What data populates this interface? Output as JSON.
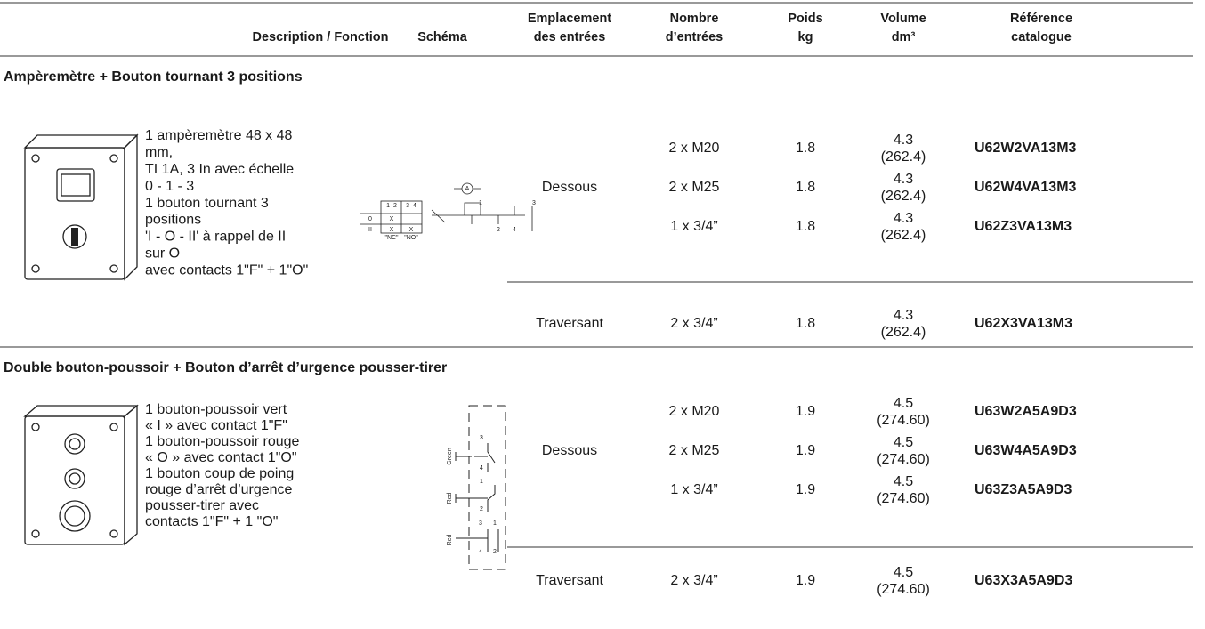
{
  "header": {
    "columns": [
      [
        "Description / Fonction"
      ],
      [
        "Schéma"
      ],
      [
        "Emplacement",
        "des entrées"
      ],
      [
        "Nombre",
        "d’entrées"
      ],
      [
        "Poids",
        "kg"
      ],
      [
        "Volume",
        "dm³"
      ],
      [
        "Référence",
        "catalogue"
      ]
    ]
  },
  "sections": [
    {
      "title": "Ampèremètre + Bouton tournant 3 positions",
      "description": [
        "1 ampèremètre 48 x 48",
        "mm,",
        "TI 1A, 3 In avec échelle",
        "0 - 1 - 3",
        "1 bouton tournant 3",
        "positions",
        "'I - O - II' à rappel de II",
        "sur O",
        "avec contacts 1\"F\" + 1\"O\""
      ],
      "schema_labels": [
        "A",
        "1–2",
        "3–4",
        "0",
        "II",
        "X",
        "X",
        "X",
        "\"NC\"",
        "\"NO\"",
        "1",
        "3",
        "2",
        "4"
      ],
      "locations": [
        {
          "label": "Dessous",
          "rows": [
            {
              "entries": "2 x M20",
              "weight": "1.8",
              "volume": [
                "4.3",
                "(262.4)"
              ],
              "reference": "U62W2VA13M3"
            },
            {
              "entries": "2 x M25",
              "weight": "1.8",
              "volume": [
                "4.3",
                "(262.4)"
              ],
              "reference": "U62W4VA13M3"
            },
            {
              "entries": "1 x 3/4”",
              "weight": "1.8",
              "volume": [
                "4.3",
                "(262.4)"
              ],
              "reference": "U62Z3VA13M3"
            }
          ]
        },
        {
          "label": "Traversant",
          "rows": [
            {
              "entries": "2 x 3/4”",
              "weight": "1.8",
              "volume": [
                "4.3",
                "(262.4)"
              ],
              "reference": "U62X3VA13M3"
            }
          ]
        }
      ]
    },
    {
      "title": "Double bouton-poussoir + Bouton d’arrêt d’urgence pousser-tirer",
      "description": [
        "1 bouton-poussoir vert",
        "« I » avec contact 1\"F\"",
        "1 bouton-poussoir rouge",
        "« O » avec contact 1\"O\"",
        "1 bouton coup de poing",
        "rouge d’arrêt d’urgence",
        "pousser-tirer avec",
        "contacts 1\"F\" + 1 \"O\""
      ],
      "schema_labels": [
        "Green",
        "Red",
        "Red",
        "3",
        "4",
        "1",
        "2",
        "3",
        "4",
        "1",
        "2"
      ],
      "locations": [
        {
          "label": "Dessous",
          "rows": [
            {
              "entries": "2 x M20",
              "weight": "1.9",
              "volume": [
                "4.5",
                "(274.60)"
              ],
              "reference": "U63W2A5A9D3"
            },
            {
              "entries": "2 x M25",
              "weight": "1.9",
              "volume": [
                "4.5",
                "(274.60)"
              ],
              "reference": "U63W4A5A9D3"
            },
            {
              "entries": "1 x 3/4”",
              "weight": "1.9",
              "volume": [
                "4.5",
                "(274.60)"
              ],
              "reference": "U63Z3A5A9D3"
            }
          ]
        },
        {
          "label": "Traversant",
          "rows": [
            {
              "entries": "2 x 3/4”",
              "weight": "1.9",
              "volume": [
                "4.5",
                "(274.60)"
              ],
              "reference": "U63X3A5A9D3"
            }
          ]
        }
      ]
    }
  ]
}
